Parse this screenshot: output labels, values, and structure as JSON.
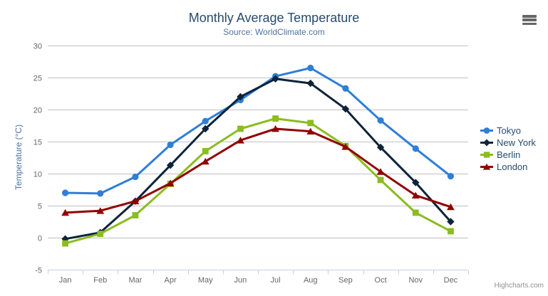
{
  "credits": "Highcharts.com",
  "colors": {
    "title_text": "#274b6d",
    "subtitle_text": "#4d759e",
    "axis_label_text": "#666666",
    "grid_line": "#c0c0c0",
    "axis_line": "#c0d0e0",
    "burger_icon": "#666666",
    "credits_text": "#909090",
    "background": "#ffffff"
  },
  "chart_data": {
    "type": "line",
    "title": "Monthly Average Temperature",
    "subtitle": "Source: WorldClimate.com",
    "xlabel": "",
    "ylabel": "Temperature (°C)",
    "ylim": [
      -5,
      30
    ],
    "ytick_step": 5,
    "grid": true,
    "legend_position": "right-middle",
    "categories": [
      "Jan",
      "Feb",
      "Mar",
      "Apr",
      "May",
      "Jun",
      "Jul",
      "Aug",
      "Sep",
      "Oct",
      "Nov",
      "Dec"
    ],
    "series": [
      {
        "name": "Tokyo",
        "color": "#2f7ed8",
        "marker": "circle",
        "values": [
          7.0,
          6.9,
          9.5,
          14.5,
          18.2,
          21.5,
          25.2,
          26.5,
          23.3,
          18.3,
          13.9,
          9.6
        ]
      },
      {
        "name": "New York",
        "color": "#0d233a",
        "marker": "diamond",
        "values": [
          -0.2,
          0.8,
          5.7,
          11.3,
          17.0,
          22.0,
          24.8,
          24.1,
          20.1,
          14.1,
          8.6,
          2.5
        ]
      },
      {
        "name": "Berlin",
        "color": "#8bbc21",
        "marker": "square",
        "values": [
          -0.9,
          0.6,
          3.5,
          8.4,
          13.5,
          17.0,
          18.6,
          17.9,
          14.3,
          9.0,
          3.9,
          1.0
        ]
      },
      {
        "name": "London",
        "color": "#910000",
        "marker": "triangle",
        "values": [
          3.9,
          4.2,
          5.7,
          8.5,
          11.9,
          15.2,
          17.0,
          16.6,
          14.2,
          10.3,
          6.6,
          4.8
        ]
      }
    ]
  }
}
